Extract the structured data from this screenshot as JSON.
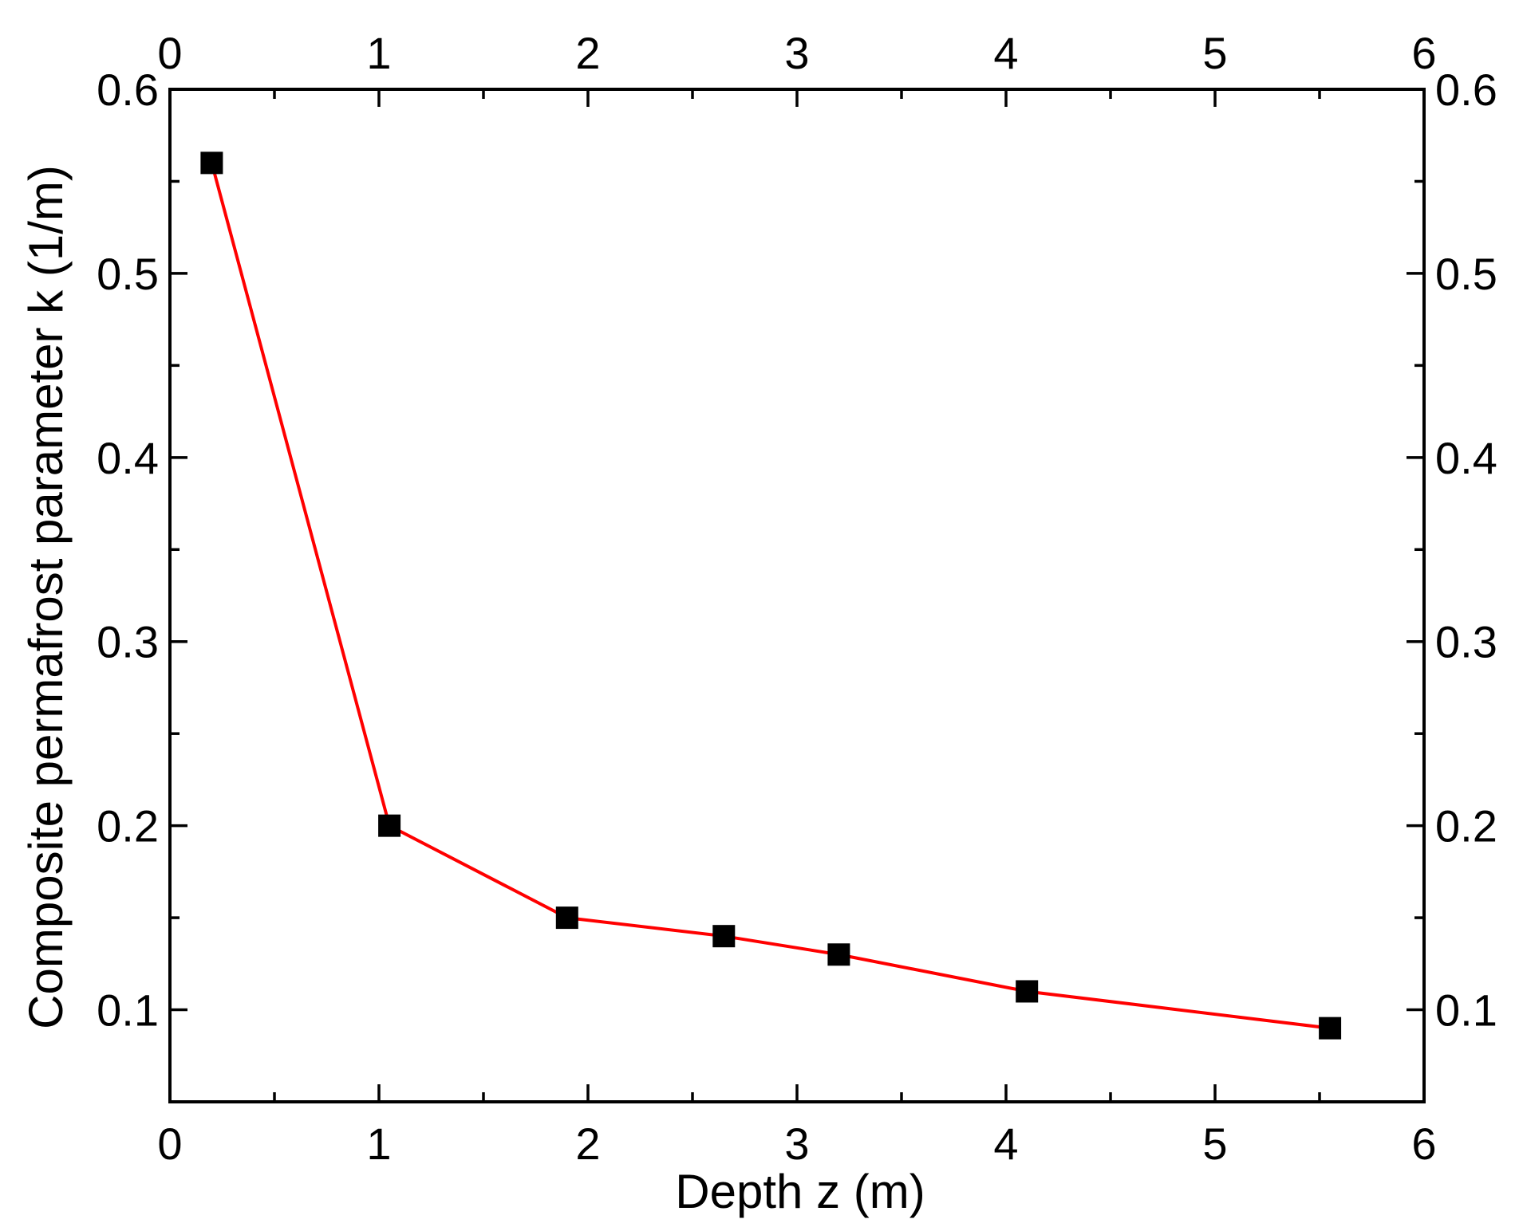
{
  "chart_data": {
    "type": "line",
    "title": "",
    "xlabel": "Depth z (m)",
    "ylabel": "Composite permafrost parameter k (1/m)",
    "xlim": [
      0,
      6
    ],
    "ylim": [
      0.05,
      0.6
    ],
    "x_ticks": [
      0,
      1,
      2,
      3,
      4,
      5,
      6
    ],
    "x_tick_labels": [
      "0",
      "1",
      "2",
      "3",
      "4",
      "5",
      "6"
    ],
    "y_ticks": [
      0.1,
      0.2,
      0.3,
      0.4,
      0.5,
      0.6
    ],
    "y_tick_labels": [
      "0.1",
      "0.2",
      "0.3",
      "0.4",
      "0.5",
      "0.6"
    ],
    "top_axis_tick_labels": [
      "0",
      "1",
      "2",
      "3",
      "4",
      "5",
      "6"
    ],
    "right_axis_tick_labels": [
      "0.1",
      "0.2",
      "0.3",
      "0.4",
      "0.5",
      "0.6"
    ],
    "grid": false,
    "series": [
      {
        "x": [
          0.2,
          1.05,
          1.9,
          2.65,
          3.2,
          4.1,
          5.55
        ],
        "y": [
          0.56,
          0.2,
          0.15,
          0.14,
          0.13,
          0.11,
          0.09
        ],
        "line_color": "#ff0000",
        "marker": "square",
        "marker_color": "#000000"
      }
    ]
  }
}
